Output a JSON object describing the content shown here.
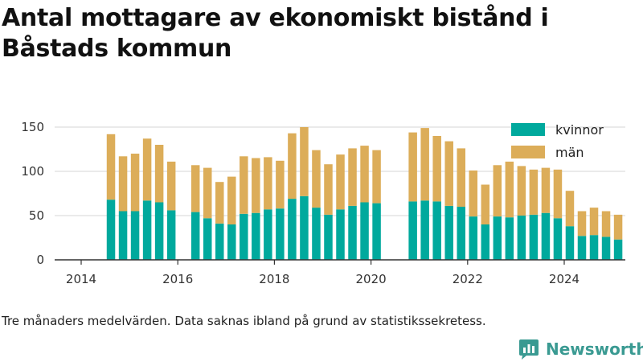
{
  "title": "Antal mottagare av ekonomiskt bistånd i Båstads kommun",
  "footnote": "Tre månaders medelvärden. Data saknas ibland på grund av statistikssekretess.",
  "brand": {
    "name": "Newsworthy",
    "color": "#3a9a92"
  },
  "colors": {
    "kvinnor": "#00a99d",
    "man": "#dcad59",
    "grid": "#dddddd",
    "axis": "#333333"
  },
  "chart_data": {
    "type": "bar",
    "stacked": true,
    "x_unit": "quarter",
    "x": [
      "2014-Q2",
      "2014-Q3",
      "2014-Q4",
      "2015-Q1",
      "2015-Q2",
      "2015-Q3",
      "2016-Q1",
      "2016-Q2",
      "2016-Q3",
      "2016-Q4",
      "2017-Q1",
      "2017-Q2",
      "2017-Q3",
      "2017-Q4",
      "2018-Q1",
      "2018-Q2",
      "2018-Q3",
      "2018-Q4",
      "2019-Q1",
      "2019-Q2",
      "2019-Q3",
      "2019-Q4",
      "2020-Q3",
      "2020-Q4",
      "2021-Q1",
      "2021-Q2",
      "2021-Q3",
      "2021-Q4",
      "2022-Q1",
      "2022-Q2",
      "2022-Q3",
      "2022-Q4",
      "2023-Q1",
      "2023-Q2",
      "2023-Q3",
      "2023-Q4",
      "2024-Q1",
      "2024-Q2",
      "2024-Q3",
      "2024-Q4"
    ],
    "series": [
      {
        "name": "kvinnor",
        "values": [
          68,
          55,
          55,
          67,
          65,
          56,
          54,
          47,
          41,
          40,
          52,
          53,
          57,
          58,
          69,
          72,
          59,
          51,
          57,
          61,
          65,
          64,
          66,
          67,
          66,
          61,
          60,
          49,
          40,
          49,
          48,
          50,
          51,
          53,
          47,
          38,
          27,
          28,
          26,
          23
        ]
      },
      {
        "name": "män",
        "values": [
          74,
          62,
          65,
          70,
          65,
          55,
          53,
          57,
          47,
          54,
          65,
          62,
          59,
          54,
          74,
          78,
          65,
          57,
          62,
          65,
          64,
          60,
          78,
          82,
          74,
          73,
          66,
          52,
          45,
          58,
          63,
          56,
          51,
          51,
          55,
          40,
          28,
          31,
          29,
          28
        ]
      }
    ],
    "x_ticks": [
      "2014",
      "2016",
      "2018",
      "2020",
      "2022",
      "2024"
    ],
    "y_ticks": [
      "0",
      "50",
      "100",
      "150"
    ],
    "ylim": [
      0,
      150
    ],
    "grid": true,
    "legend_position": "top-right",
    "legend": [
      "kvinnor",
      "män"
    ]
  }
}
